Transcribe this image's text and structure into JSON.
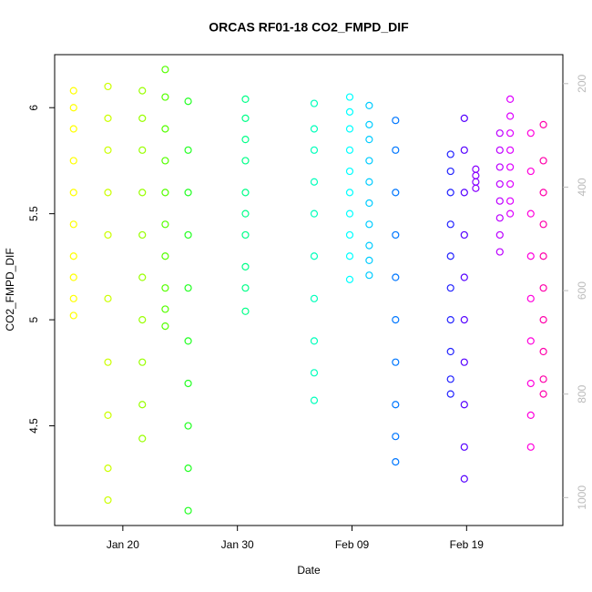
{
  "chart_data": {
    "type": "scatter",
    "title": "ORCAS RF01-18 CO2_FMPD_DIF",
    "x_label": "Date",
    "y_label": "CO2_FMPD_DIF",
    "xlim": [
      14.05,
      58.4
    ],
    "xticks": [
      {
        "value": 20,
        "label": "Jan 20"
      },
      {
        "value": 30,
        "label": "Jan 30"
      },
      {
        "value": 40,
        "label": "Feb 09"
      },
      {
        "value": 50,
        "label": "Feb 19"
      }
    ],
    "ylim": [
      4.03,
      6.25
    ],
    "yticks": [
      4.5,
      5.0,
      5.5,
      6.0
    ],
    "y2lim": [
      1054,
      144
    ],
    "y2ticks": [
      200,
      400,
      600,
      800,
      1000
    ],
    "series": [
      {
        "color": "#ffff00",
        "x": 15.7,
        "values": [
          6.08,
          6.0,
          5.9,
          5.75,
          5.6,
          5.45,
          5.3,
          5.2,
          5.1,
          5.02
        ]
      },
      {
        "color": "#ccff00",
        "x": 18.7,
        "values": [
          6.1,
          5.95,
          5.8,
          5.6,
          5.4,
          5.1,
          4.8,
          4.55,
          4.3,
          4.15
        ]
      },
      {
        "color": "#99ff00",
        "x": 21.7,
        "values": [
          6.08,
          5.95,
          5.8,
          5.6,
          5.4,
          5.2,
          5.0,
          4.8,
          4.6,
          4.44
        ]
      },
      {
        "color": "#55ff00",
        "x": 23.7,
        "values": [
          6.18,
          6.05,
          5.9,
          5.75,
          5.6,
          5.45,
          5.3,
          5.15,
          5.05,
          4.97
        ]
      },
      {
        "color": "#22ff22",
        "x": 25.7,
        "values": [
          6.03,
          5.8,
          5.6,
          5.4,
          5.15,
          4.9,
          4.7,
          4.5,
          4.3,
          4.1
        ]
      },
      {
        "color": "#00ff88",
        "x": 30.7,
        "values": [
          6.04,
          5.95,
          5.85,
          5.75,
          5.6,
          5.5,
          5.4,
          5.25,
          5.15,
          5.04
        ]
      },
      {
        "color": "#00ffbb",
        "x": 36.7,
        "values": [
          6.02,
          5.9,
          5.8,
          5.65,
          5.5,
          5.3,
          5.1,
          4.9,
          4.75,
          4.62
        ]
      },
      {
        "color": "#00ffff",
        "x": 39.8,
        "values": [
          6.05,
          5.98,
          5.9,
          5.8,
          5.7,
          5.6,
          5.5,
          5.4,
          5.3,
          5.19
        ]
      },
      {
        "color": "#00ccff",
        "x": 41.5,
        "values": [
          6.01,
          5.92,
          5.85,
          5.75,
          5.65,
          5.55,
          5.45,
          5.35,
          5.28,
          5.21
        ]
      },
      {
        "color": "#0077ff",
        "x": 43.8,
        "values": [
          5.94,
          5.8,
          5.6,
          5.4,
          5.2,
          5.0,
          4.8,
          4.6,
          4.45,
          4.33
        ]
      },
      {
        "color": "#2222ff",
        "x": 48.6,
        "values": [
          5.78,
          5.7,
          5.6,
          5.45,
          5.3,
          5.15,
          5.0,
          4.85,
          4.72,
          4.65
        ]
      },
      {
        "color": "#5500ff",
        "x": 49.8,
        "values": [
          5.95,
          5.8,
          5.6,
          5.4,
          5.2,
          5.0,
          4.8,
          4.6,
          4.4,
          4.25
        ]
      },
      {
        "color": "#8800ff",
        "x": 50.8,
        "values": [
          5.71,
          5.68,
          5.65,
          5.62
        ]
      },
      {
        "color": "#bb00ff",
        "x": 52.9,
        "values": [
          5.88,
          5.8,
          5.72,
          5.64,
          5.56,
          5.48,
          5.4,
          5.32
        ]
      },
      {
        "color": "#dd00ff",
        "x": 53.8,
        "values": [
          6.04,
          5.96,
          5.88,
          5.8,
          5.72,
          5.64,
          5.56,
          5.5
        ]
      },
      {
        "color": "#ff00dd",
        "x": 55.6,
        "values": [
          5.88,
          5.7,
          5.5,
          5.3,
          5.1,
          4.9,
          4.7,
          4.55,
          4.4
        ]
      },
      {
        "color": "#ff00aa",
        "x": 56.7,
        "values": [
          5.92,
          5.75,
          5.6,
          5.45,
          5.3,
          5.15,
          5.0,
          4.85,
          4.72,
          4.65
        ]
      }
    ]
  }
}
